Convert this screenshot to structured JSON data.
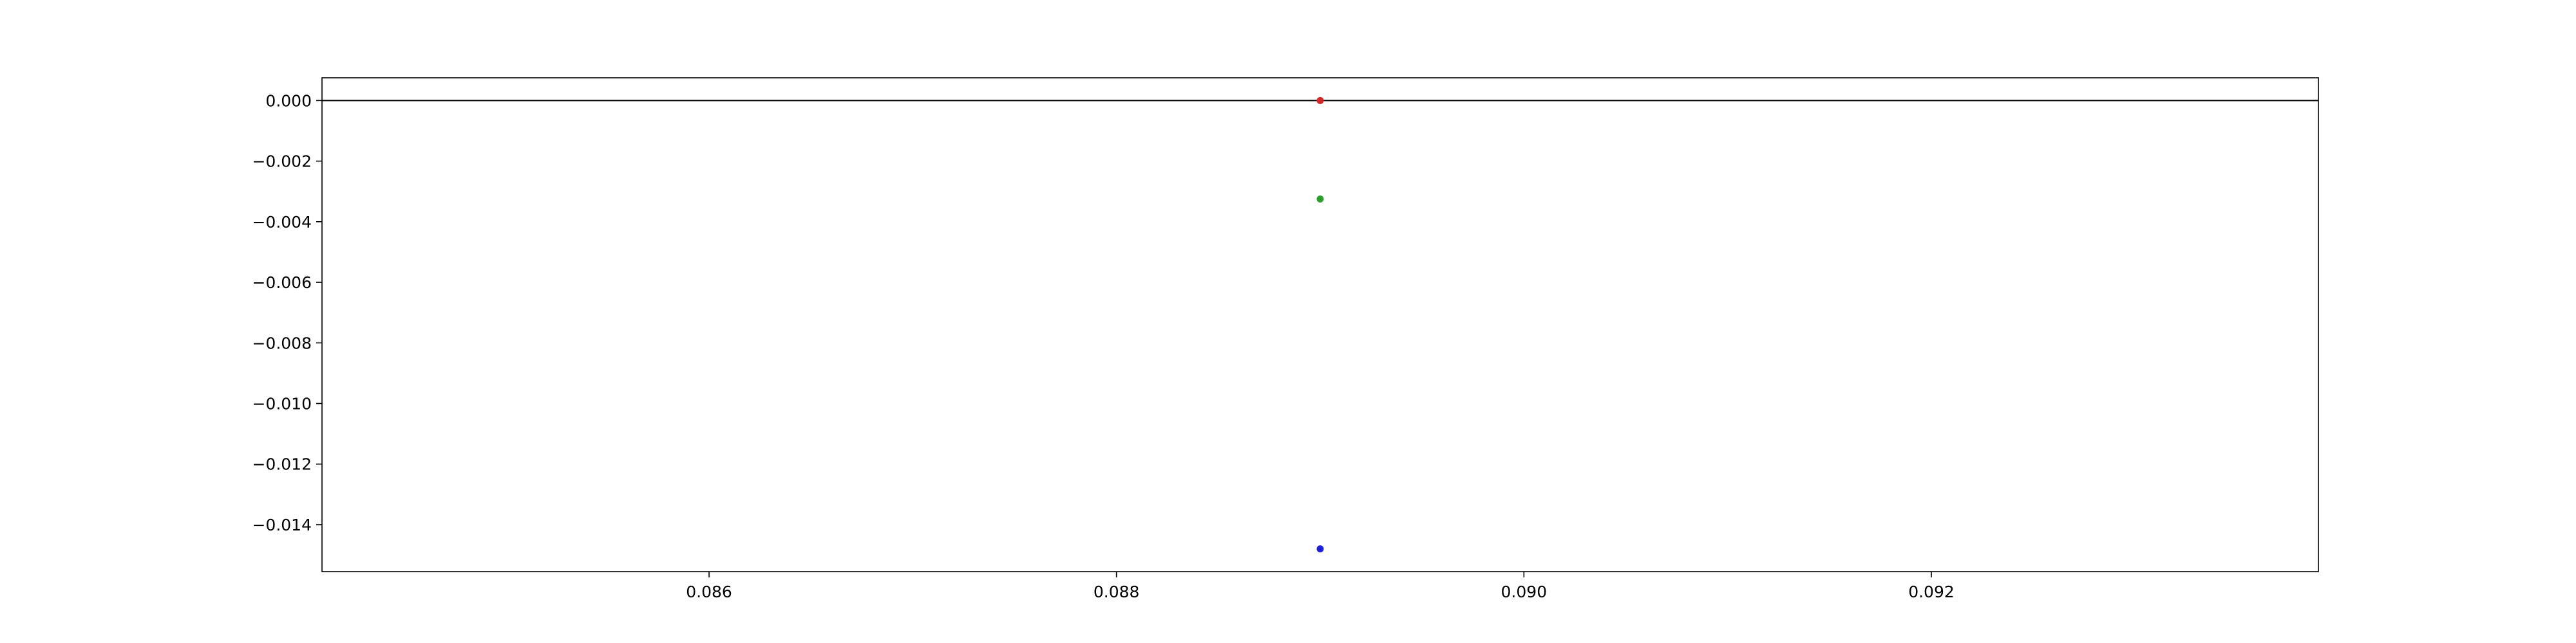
{
  "chart_data": {
    "type": "scatter",
    "title": "",
    "xlabel": "",
    "ylabel": "",
    "xlim": [
      0.0841,
      0.0939
    ],
    "ylim": [
      -0.01555,
      0.00075
    ],
    "grid": false,
    "x_ticks": [
      {
        "value": 0.086,
        "label": "0.086"
      },
      {
        "value": 0.088,
        "label": "0.088"
      },
      {
        "value": 0.09,
        "label": "0.090"
      },
      {
        "value": 0.092,
        "label": "0.092"
      }
    ],
    "y_ticks": [
      {
        "value": 0.0,
        "label": "0.000"
      },
      {
        "value": -0.002,
        "label": "−0.002"
      },
      {
        "value": -0.004,
        "label": "−0.004"
      },
      {
        "value": -0.006,
        "label": "−0.006"
      },
      {
        "value": -0.008,
        "label": "−0.008"
      },
      {
        "value": -0.01,
        "label": "−0.010"
      },
      {
        "value": -0.012,
        "label": "−0.012"
      },
      {
        "value": -0.014,
        "label": "−0.014"
      }
    ],
    "reference_line": {
      "y": 0.0,
      "color": "#000000"
    },
    "points": [
      {
        "x": 0.089,
        "y": 0.0,
        "color": "#d62728"
      },
      {
        "x": 0.089,
        "y": -0.00325,
        "color": "#2ca02c"
      },
      {
        "x": 0.089,
        "y": -0.0148,
        "color": "#1f1fd6"
      }
    ]
  }
}
